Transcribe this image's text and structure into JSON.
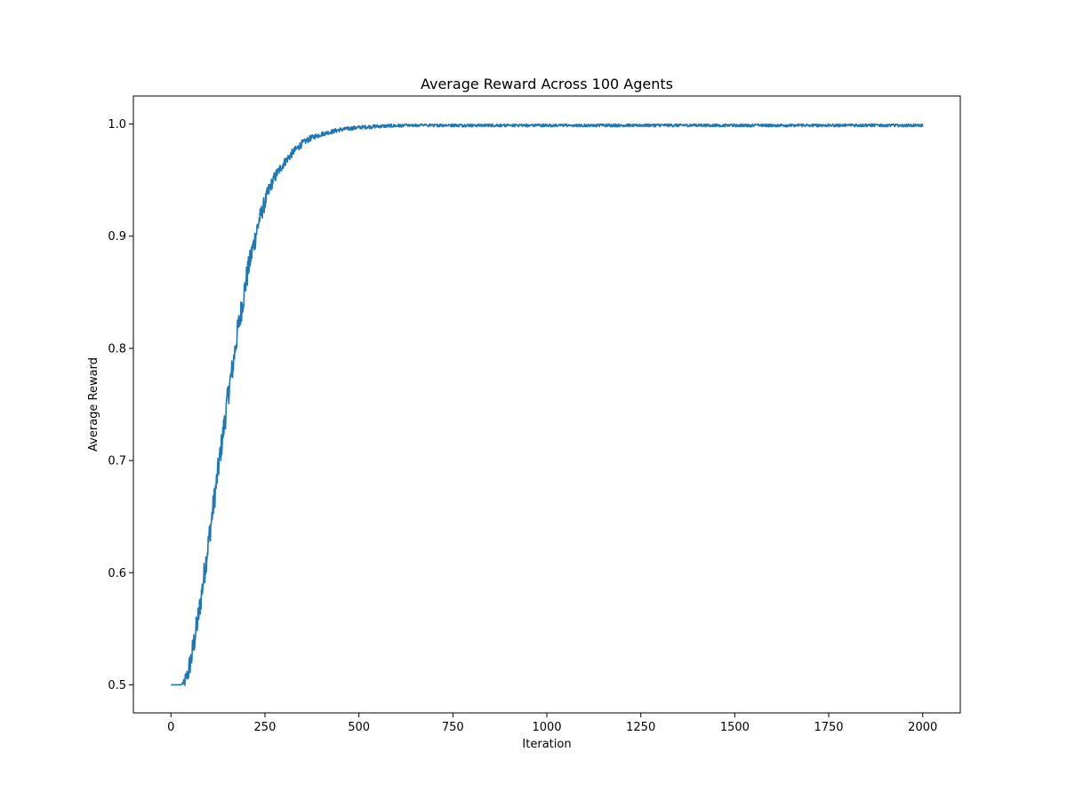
{
  "chart_data": {
    "type": "line",
    "title": "Average Reward Across 100 Agents",
    "xlabel": "Iteration",
    "ylabel": "Average Reward",
    "xlim": [
      -100,
      2100
    ],
    "ylim": [
      0.475,
      1.025
    ],
    "xticks": [
      0,
      250,
      500,
      750,
      1000,
      1250,
      1500,
      1750,
      2000
    ],
    "xtick_labels": [
      "0",
      "250",
      "500",
      "750",
      "1000",
      "1250",
      "1500",
      "1750",
      "2000"
    ],
    "yticks": [
      0.5,
      0.6,
      0.7,
      0.8,
      0.9,
      1.0
    ],
    "ytick_labels": [
      "0.5",
      "0.6",
      "0.7",
      "0.8",
      "0.9",
      "1.0"
    ],
    "grid": false,
    "line_color": "#1f77b4",
    "series": [
      {
        "x": [
          0,
          25,
          35,
          45,
          55,
          65,
          75,
          85,
          95,
          105,
          115,
          125,
          135,
          145,
          155,
          165,
          175,
          185,
          195,
          205,
          215,
          225,
          235,
          250,
          265,
          280,
          300,
          325,
          350,
          375,
          400,
          425,
          450,
          475,
          500,
          550,
          600,
          650,
          700,
          750,
          800,
          900,
          1000,
          1100,
          1200,
          1300,
          1400,
          1500,
          1600,
          1700,
          1800,
          1900,
          2000
        ],
        "y": [
          0.5,
          0.5,
          0.502,
          0.51,
          0.525,
          0.545,
          0.565,
          0.59,
          0.615,
          0.64,
          0.665,
          0.69,
          0.715,
          0.74,
          0.765,
          0.785,
          0.81,
          0.83,
          0.85,
          0.87,
          0.885,
          0.9,
          0.915,
          0.93,
          0.945,
          0.955,
          0.965,
          0.975,
          0.983,
          0.988,
          0.991,
          0.993,
          0.995,
          0.996,
          0.997,
          0.998,
          0.9985,
          0.999,
          0.999,
          0.999,
          0.999,
          0.999,
          0.999,
          0.999,
          0.999,
          0.999,
          0.999,
          0.999,
          0.999,
          0.999,
          0.999,
          0.999,
          0.999
        ]
      }
    ]
  }
}
